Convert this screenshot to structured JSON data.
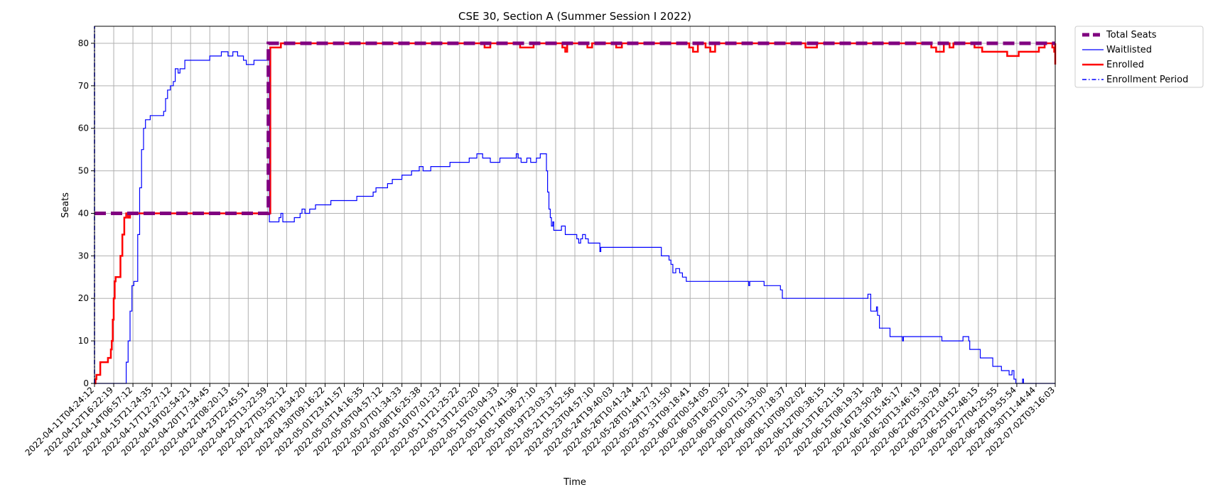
{
  "chart_data": {
    "type": "line",
    "title": "CSE 30, Section A (Summer Session I 2022)",
    "xlabel": "Time",
    "ylabel": "Seats",
    "ylim": [
      0,
      84
    ],
    "y_ticks": [
      0,
      10,
      20,
      30,
      40,
      50,
      60,
      70,
      80
    ],
    "grid": true,
    "legend_position": "outside-top-right",
    "x_ticks": [
      "2022-04-11T04:24:12",
      "2022-04-12T16:22:19",
      "2022-04-14T06:57:12",
      "2022-04-15T21:24:35",
      "2022-04-17T12:27:12",
      "2022-04-19T02:54:21",
      "2022-04-20T17:34:45",
      "2022-04-22T08:20:13",
      "2022-04-23T22:45:51",
      "2022-04-25T13:22:59",
      "2022-04-27T03:52:12",
      "2022-04-28T18:34:20",
      "2022-04-30T09:16:22",
      "2022-05-01T23:41:57",
      "2022-05-03T14:16:35",
      "2022-05-05T04:57:12",
      "2022-05-07T01:34:33",
      "2022-05-08T16:25:38",
      "2022-05-10T07:01:23",
      "2022-05-11T21:25:22",
      "2022-05-13T12:02:20",
      "2022-05-15T03:04:33",
      "2022-05-16T17:41:36",
      "2022-05-18T08:27:10",
      "2022-05-19T23:03:37",
      "2022-05-21T13:52:56",
      "2022-05-23T04:57:10",
      "2022-05-24T19:40:03",
      "2022-05-26T10:41:24",
      "2022-05-28T01:44:27",
      "2022-05-29T17:31:50",
      "2022-05-31T09:18:41",
      "2022-06-02T00:54:05",
      "2022-06-03T18:20:32",
      "2022-06-05T10:01:31",
      "2022-06-07T01:33:00",
      "2022-06-08T17:18:37",
      "2022-06-10T09:02:02",
      "2022-06-12T00:38:15",
      "2022-06-13T16:21:15",
      "2022-06-15T08:19:31",
      "2022-06-16T23:50:28",
      "2022-06-18T15:45:17",
      "2022-06-20T13:46:19",
      "2022-06-22T05:30:29",
      "2022-06-23T21:04:52",
      "2022-06-25T12:48:15",
      "2022-06-27T04:25:55",
      "2022-06-28T19:55:54",
      "2022-06-30T11:44:44",
      "2022-07-02T03:16:03"
    ],
    "series": [
      {
        "name": "Total Seats",
        "color": "#800080",
        "style": "dashed-thick",
        "step": true,
        "points": [
          [
            0,
            40
          ],
          [
            9.05,
            40
          ],
          [
            9.05,
            80
          ],
          [
            50,
            80
          ]
        ]
      },
      {
        "name": "Waitlisted",
        "color": "#0000ff",
        "style": "solid-thin",
        "step": true,
        "points": [
          [
            0,
            0
          ],
          [
            1.5,
            0
          ],
          [
            1.65,
            5
          ],
          [
            1.75,
            10
          ],
          [
            1.85,
            17
          ],
          [
            1.95,
            23
          ],
          [
            2.05,
            24
          ],
          [
            2.15,
            24
          ],
          [
            2.25,
            35
          ],
          [
            2.35,
            46
          ],
          [
            2.45,
            55
          ],
          [
            2.55,
            60
          ],
          [
            2.65,
            62
          ],
          [
            2.8,
            62
          ],
          [
            2.9,
            63
          ],
          [
            3.5,
            63
          ],
          [
            3.6,
            64
          ],
          [
            3.7,
            67
          ],
          [
            3.8,
            69
          ],
          [
            3.95,
            70
          ],
          [
            4.1,
            71
          ],
          [
            4.2,
            74
          ],
          [
            4.35,
            73
          ],
          [
            4.45,
            74
          ],
          [
            4.7,
            76
          ],
          [
            6,
            77
          ],
          [
            6.5,
            77
          ],
          [
            6.6,
            78
          ],
          [
            6.95,
            77
          ],
          [
            7.2,
            78
          ],
          [
            7.45,
            77
          ],
          [
            7.75,
            76
          ],
          [
            7.9,
            75
          ],
          [
            8.3,
            76
          ],
          [
            8.8,
            76
          ],
          [
            9.05,
            77
          ],
          [
            9.1,
            38
          ],
          [
            9.4,
            38
          ],
          [
            9.6,
            39
          ],
          [
            9.7,
            40
          ],
          [
            9.8,
            38
          ],
          [
            10.3,
            38
          ],
          [
            10.4,
            39
          ],
          [
            10.7,
            40
          ],
          [
            10.8,
            41
          ],
          [
            10.95,
            40
          ],
          [
            11.2,
            41
          ],
          [
            11.5,
            42
          ],
          [
            12,
            42
          ],
          [
            12.3,
            43
          ],
          [
            13,
            43
          ],
          [
            13.65,
            44
          ],
          [
            14.5,
            45
          ],
          [
            14.65,
            46
          ],
          [
            15.25,
            47
          ],
          [
            15.5,
            48
          ],
          [
            16,
            49
          ],
          [
            16.5,
            50
          ],
          [
            16.9,
            51
          ],
          [
            17.1,
            50
          ],
          [
            17.5,
            51
          ],
          [
            18.5,
            52
          ],
          [
            19.5,
            53
          ],
          [
            19.9,
            54
          ],
          [
            20.2,
            53
          ],
          [
            20.6,
            52
          ],
          [
            21.1,
            53
          ],
          [
            21.95,
            54
          ],
          [
            22.05,
            53
          ],
          [
            22.2,
            52
          ],
          [
            22.5,
            53
          ],
          [
            22.7,
            52
          ],
          [
            23,
            53
          ],
          [
            23.2,
            54
          ],
          [
            23.48,
            54
          ],
          [
            23.52,
            50
          ],
          [
            23.58,
            45
          ],
          [
            23.65,
            41
          ],
          [
            23.72,
            39
          ],
          [
            23.78,
            37
          ],
          [
            23.85,
            38
          ],
          [
            23.9,
            36
          ],
          [
            24.3,
            37
          ],
          [
            24.5,
            35
          ],
          [
            25.1,
            34
          ],
          [
            25.2,
            33
          ],
          [
            25.3,
            34
          ],
          [
            25.4,
            35
          ],
          [
            25.55,
            34
          ],
          [
            25.7,
            33
          ],
          [
            26.25,
            33
          ],
          [
            26.3,
            31
          ],
          [
            26.35,
            32
          ],
          [
            29.3,
            32
          ],
          [
            29.5,
            30
          ],
          [
            29.9,
            29
          ],
          [
            30,
            28
          ],
          [
            30.1,
            26
          ],
          [
            30.25,
            27
          ],
          [
            30.45,
            26
          ],
          [
            30.6,
            25
          ],
          [
            30.8,
            24
          ],
          [
            34,
            24
          ],
          [
            34.05,
            23
          ],
          [
            34.1,
            24
          ],
          [
            34.85,
            23
          ],
          [
            35.6,
            23
          ],
          [
            35.7,
            22
          ],
          [
            35.8,
            20
          ],
          [
            40.2,
            20
          ],
          [
            40.25,
            21
          ],
          [
            40.4,
            17
          ],
          [
            40.7,
            18
          ],
          [
            40.75,
            16
          ],
          [
            40.85,
            13
          ],
          [
            41.3,
            13
          ],
          [
            41.4,
            11
          ],
          [
            42.05,
            10
          ],
          [
            42.1,
            11
          ],
          [
            44.05,
            11
          ],
          [
            44.1,
            10
          ],
          [
            45.2,
            11
          ],
          [
            45.5,
            10
          ],
          [
            45.55,
            8
          ],
          [
            46.1,
            6
          ],
          [
            46.75,
            4
          ],
          [
            47.2,
            3
          ],
          [
            47.6,
            2
          ],
          [
            47.75,
            3
          ],
          [
            47.85,
            1
          ],
          [
            47.95,
            0
          ],
          [
            48.3,
            1
          ],
          [
            48.35,
            0
          ],
          [
            50,
            0
          ]
        ]
      },
      {
        "name": "Enrolled",
        "color": "#ff0000",
        "style": "solid-thick",
        "step": true,
        "points": [
          [
            0,
            0
          ],
          [
            0.05,
            1
          ],
          [
            0.1,
            2
          ],
          [
            0.3,
            5
          ],
          [
            0.7,
            6
          ],
          [
            0.85,
            8
          ],
          [
            0.9,
            10
          ],
          [
            0.95,
            15
          ],
          [
            1.0,
            20
          ],
          [
            1.05,
            24
          ],
          [
            1.1,
            25
          ],
          [
            1.35,
            30
          ],
          [
            1.45,
            35
          ],
          [
            1.55,
            39
          ],
          [
            1.65,
            40
          ],
          [
            1.75,
            39
          ],
          [
            1.85,
            40
          ],
          [
            9.05,
            40
          ],
          [
            9.15,
            79
          ],
          [
            9.7,
            80
          ],
          [
            20.3,
            79
          ],
          [
            20.6,
            80
          ],
          [
            22.15,
            79
          ],
          [
            22.85,
            80
          ],
          [
            24.35,
            79
          ],
          [
            24.5,
            78
          ],
          [
            24.6,
            80
          ],
          [
            25.65,
            79
          ],
          [
            25.9,
            80
          ],
          [
            27.15,
            79
          ],
          [
            27.45,
            80
          ],
          [
            30.95,
            79
          ],
          [
            31.15,
            78
          ],
          [
            31.4,
            80
          ],
          [
            31.8,
            79
          ],
          [
            32.05,
            78
          ],
          [
            32.3,
            80
          ],
          [
            37,
            79
          ],
          [
            37.6,
            80
          ],
          [
            43.55,
            79
          ],
          [
            43.8,
            78
          ],
          [
            44.2,
            80
          ],
          [
            44.5,
            79
          ],
          [
            44.7,
            80
          ],
          [
            45.8,
            79
          ],
          [
            46.2,
            78
          ],
          [
            47.5,
            77
          ],
          [
            48.1,
            78
          ],
          [
            49.15,
            79
          ],
          [
            49.45,
            80
          ],
          [
            49.85,
            79
          ],
          [
            49.95,
            78
          ],
          [
            50.25,
            77
          ],
          [
            50.5,
            76
          ],
          [
            50.65,
            75
          ],
          [
            50.85,
            79
          ],
          [
            51.2,
            80
          ],
          [
            51.9,
            79
          ],
          [
            52.05,
            80
          ],
          [
            52.55,
            77
          ],
          [
            53.3,
            75
          ],
          [
            54.25,
            76
          ],
          [
            55,
            76
          ]
        ]
      },
      {
        "name": "Enrollment Period",
        "color": "#0000ff",
        "style": "dashdot-vertical",
        "step": false,
        "points": [
          [
            0,
            0
          ],
          [
            0,
            84
          ]
        ]
      }
    ]
  }
}
